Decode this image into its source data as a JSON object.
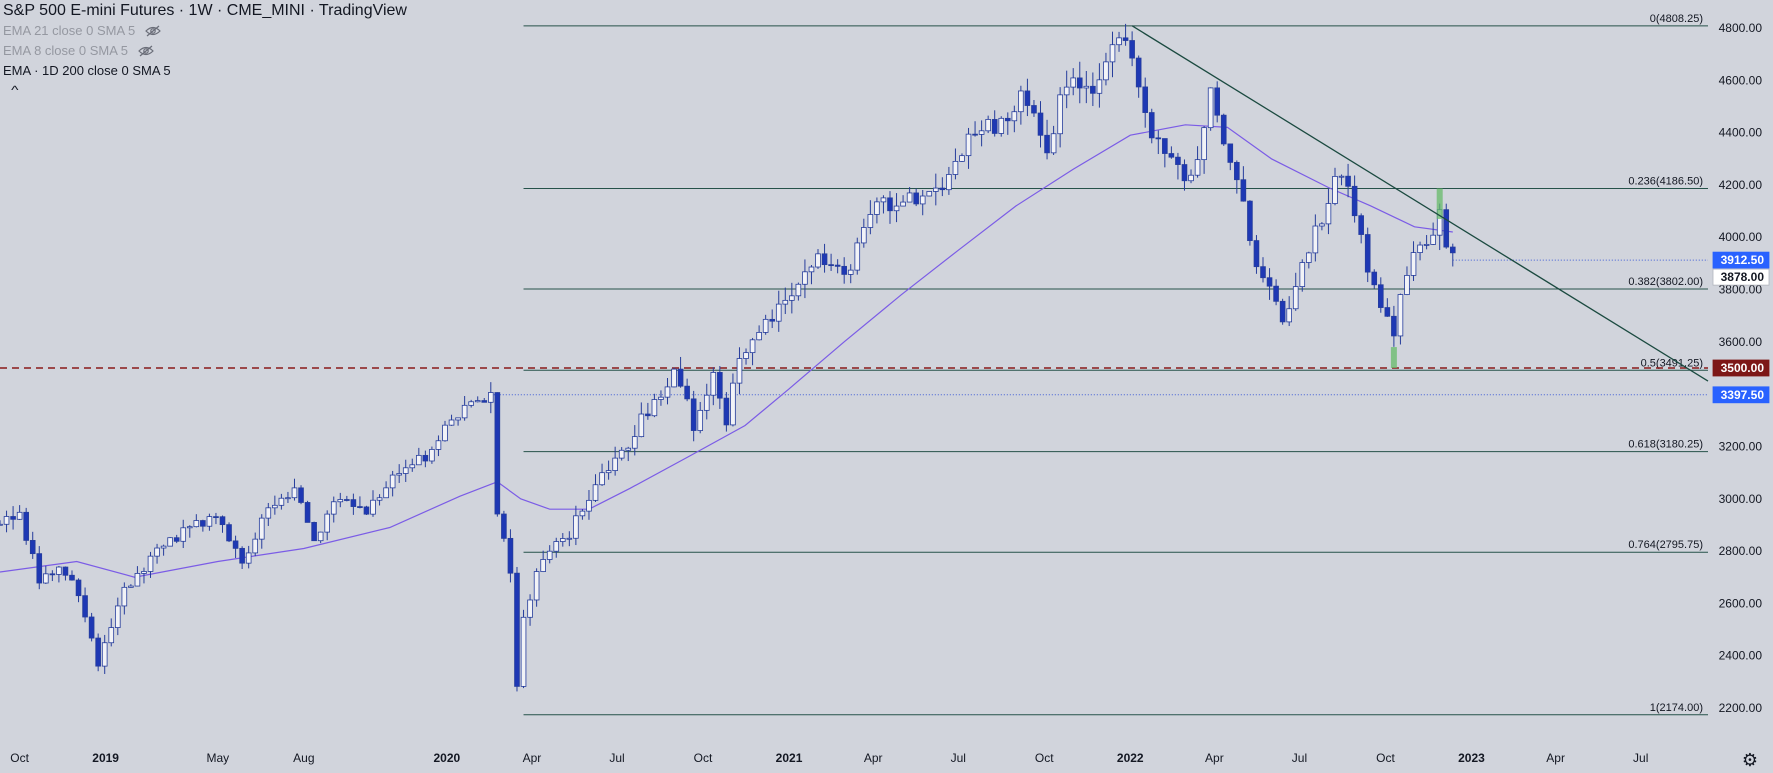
{
  "header": {
    "title": "S&P 500 E-mini Futures · 1W · CME_MINI · TradingView",
    "indicators": [
      {
        "label": "EMA 21 close 0 SMA 5",
        "hidden": true
      },
      {
        "label": "EMA 8 close 0 SMA 5",
        "hidden": true
      },
      {
        "label": "EMA · 1D 200 close 0 SMA 5",
        "hidden": false
      }
    ],
    "collapse_icon": "chevron-up-icon",
    "settings_icon": "gear-icon"
  },
  "colors": {
    "background": "#d1d4dc",
    "candle_up": "#f2f3f7",
    "candle_down": "#1e38b4",
    "wick": "#263d9c",
    "fib_line": "#26524a",
    "ma_line": "#7b5ce6",
    "support_dashed": "#8b1a1a",
    "trendline": "#1b4a40",
    "price_tag_blue": "#2962ff",
    "price_tag_red": "#7d1717",
    "axis_text": "#131722"
  },
  "chart_data": {
    "type": "candlestick",
    "title": "S&P 500 E-mini Futures · 1W · CME_MINI · TradingView",
    "ylim": [
      2115,
      4910
    ],
    "xlim": [
      "2018-09-10",
      "2023-09-11"
    ],
    "y_ticks": [
      "4800.00",
      "4600.00",
      "4400.00",
      "4200.00",
      "4000.00",
      "3800.00",
      "3600.00",
      "3400.00",
      "3200.00",
      "3000.00",
      "2800.00",
      "2600.00",
      "2400.00",
      "2200.00"
    ],
    "x_ticks": [
      {
        "label": "Oct",
        "date": "2018-10-01"
      },
      {
        "label": "2019",
        "date": "2019-01-01"
      },
      {
        "label": "May",
        "date": "2019-05-01"
      },
      {
        "label": "Aug",
        "date": "2019-08-01"
      },
      {
        "label": "2020",
        "date": "2020-01-01"
      },
      {
        "label": "Apr",
        "date": "2020-04-01"
      },
      {
        "label": "Jul",
        "date": "2020-07-01"
      },
      {
        "label": "Oct",
        "date": "2020-10-01"
      },
      {
        "label": "2021",
        "date": "2021-01-01"
      },
      {
        "label": "Apr",
        "date": "2021-04-01"
      },
      {
        "label": "Jul",
        "date": "2021-07-01"
      },
      {
        "label": "Oct",
        "date": "2021-10-01"
      },
      {
        "label": "2022",
        "date": "2022-01-01"
      },
      {
        "label": "Apr",
        "date": "2022-04-01"
      },
      {
        "label": "Jul",
        "date": "2022-07-01"
      },
      {
        "label": "Oct",
        "date": "2022-10-01"
      },
      {
        "label": "2023",
        "date": "2023-01-01"
      },
      {
        "label": "Apr",
        "date": "2023-04-01"
      },
      {
        "label": "Jul",
        "date": "2023-07-01"
      }
    ],
    "price_path": [
      [
        "2018-09-10",
        2900
      ],
      [
        "2018-10-01",
        2925
      ],
      [
        "2018-10-22",
        2700
      ],
      [
        "2018-11-12",
        2740
      ],
      [
        "2018-12-03",
        2640
      ],
      [
        "2018-12-24",
        2360
      ],
      [
        "2019-01-21",
        2660
      ],
      [
        "2019-02-25",
        2800
      ],
      [
        "2019-04-01",
        2880
      ],
      [
        "2019-04-29",
        2945
      ],
      [
        "2019-05-27",
        2770
      ],
      [
        "2019-06-24",
        2945
      ],
      [
        "2019-07-22",
        3020
      ],
      [
        "2019-08-12",
        2860
      ],
      [
        "2019-09-09",
        3000
      ],
      [
        "2019-10-07",
        2960
      ],
      [
        "2019-11-04",
        3090
      ],
      [
        "2019-12-09",
        3170
      ],
      [
        "2020-01-13",
        3320
      ],
      [
        "2020-02-17",
        3380
      ],
      [
        "2020-02-24",
        2950
      ],
      [
        "2020-03-09",
        2700
      ],
      [
        "2020-03-16",
        2300
      ],
      [
        "2020-03-23",
        2540
      ],
      [
        "2020-04-13",
        2780
      ],
      [
        "2020-05-11",
        2870
      ],
      [
        "2020-06-08",
        3050
      ],
      [
        "2020-07-06",
        3180
      ],
      [
        "2020-08-03",
        3340
      ],
      [
        "2020-08-31",
        3480
      ],
      [
        "2020-09-21",
        3290
      ],
      [
        "2020-10-12",
        3470
      ],
      [
        "2020-10-26",
        3270
      ],
      [
        "2020-11-09",
        3560
      ],
      [
        "2020-12-07",
        3670
      ],
      [
        "2021-01-04",
        3800
      ],
      [
        "2021-02-08",
        3930
      ],
      [
        "2021-03-01",
        3840
      ],
      [
        "2021-04-05",
        4130
      ],
      [
        "2021-05-10",
        4150
      ],
      [
        "2021-06-14",
        4180
      ],
      [
        "2021-07-12",
        4360
      ],
      [
        "2021-08-16",
        4450
      ],
      [
        "2021-09-06",
        4520
      ],
      [
        "2021-10-04",
        4350
      ],
      [
        "2021-10-25",
        4600
      ],
      [
        "2021-11-22",
        4580
      ],
      [
        "2021-12-27",
        4780
      ],
      [
        "2022-01-24",
        4400
      ],
      [
        "2022-02-21",
        4300
      ],
      [
        "2022-03-07",
        4200
      ],
      [
        "2022-03-28",
        4560
      ],
      [
        "2022-05-02",
        4130
      ],
      [
        "2022-05-16",
        3900
      ],
      [
        "2022-06-13",
        3680
      ],
      [
        "2022-07-04",
        3880
      ],
      [
        "2022-08-08",
        4200
      ],
      [
        "2022-08-15",
        4260
      ],
      [
        "2022-09-12",
        3880
      ],
      [
        "2022-10-10",
        3620
      ],
      [
        "2022-10-24",
        3880
      ],
      [
        "2022-11-14",
        3990
      ],
      [
        "2022-11-28",
        4070
      ],
      [
        "2022-12-12",
        3912.5
      ]
    ],
    "moving_average": {
      "name": "EMA · 1D 200 close 0 SMA 5",
      "points": [
        [
          "2018-09-10",
          2720
        ],
        [
          "2018-12-01",
          2760
        ],
        [
          "2019-02-01",
          2700
        ],
        [
          "2019-05-01",
          2760
        ],
        [
          "2019-08-01",
          2810
        ],
        [
          "2019-11-01",
          2890
        ],
        [
          "2020-01-15",
          3010
        ],
        [
          "2020-02-24",
          3065
        ],
        [
          "2020-03-20",
          3000
        ],
        [
          "2020-04-20",
          2960
        ],
        [
          "2020-06-01",
          2960
        ],
        [
          "2020-07-15",
          3040
        ],
        [
          "2020-09-15",
          3160
        ],
        [
          "2020-11-15",
          3280
        ],
        [
          "2021-01-01",
          3420
        ],
        [
          "2021-03-01",
          3600
        ],
        [
          "2021-05-01",
          3780
        ],
        [
          "2021-07-01",
          3950
        ],
        [
          "2021-09-01",
          4120
        ],
        [
          "2021-11-01",
          4260
        ],
        [
          "2022-01-01",
          4390
        ],
        [
          "2022-03-01",
          4430
        ],
        [
          "2022-04-15",
          4420
        ],
        [
          "2022-06-01",
          4300
        ],
        [
          "2022-08-01",
          4190
        ],
        [
          "2022-09-15",
          4120
        ],
        [
          "2022-11-01",
          4040
        ],
        [
          "2022-12-12",
          4020
        ]
      ]
    },
    "fibonacci_levels": [
      {
        "label": "0(4808.25)",
        "value": 4808.25
      },
      {
        "label": "0.236(4186.50)",
        "value": 4186.5
      },
      {
        "label": "0.382(3802.00)",
        "value": 3802.0
      },
      {
        "label": "0.5(3491.25)",
        "value": 3491.25
      },
      {
        "label": "0.618(3180.25)",
        "value": 3180.25
      },
      {
        "label": "0.764(2795.75)",
        "value": 2795.75
      },
      {
        "label": "1(2174.00)",
        "value": 2174.0
      }
    ],
    "fibonacci_start": "2020-03-23",
    "support_line": {
      "value": 3500,
      "label": "3500.00"
    },
    "dotted_line": {
      "value": 3397.5,
      "label": "3397.50",
      "start": "2020-02-17"
    },
    "current_price_line": {
      "value": 3912.5,
      "start": "2022-12-12"
    },
    "trendline": [
      [
        "2022-01-03",
        4808.25
      ],
      [
        "2023-09-11",
        3450
      ]
    ],
    "highlight_bars": [
      {
        "date": "2022-10-10",
        "low": 3500,
        "high": 3580
      },
      {
        "date": "2022-11-28",
        "low": 4070,
        "high": 4186.5
      }
    ],
    "price_tags": [
      {
        "label": "3912.50",
        "value": 3912.5,
        "style": "blue"
      },
      {
        "label": "3878.00",
        "value": 3878,
        "style": "white"
      },
      {
        "label": "3500.00",
        "value": 3500,
        "style": "red"
      },
      {
        "label": "3397.50",
        "value": 3397.5,
        "style": "blue"
      }
    ]
  }
}
